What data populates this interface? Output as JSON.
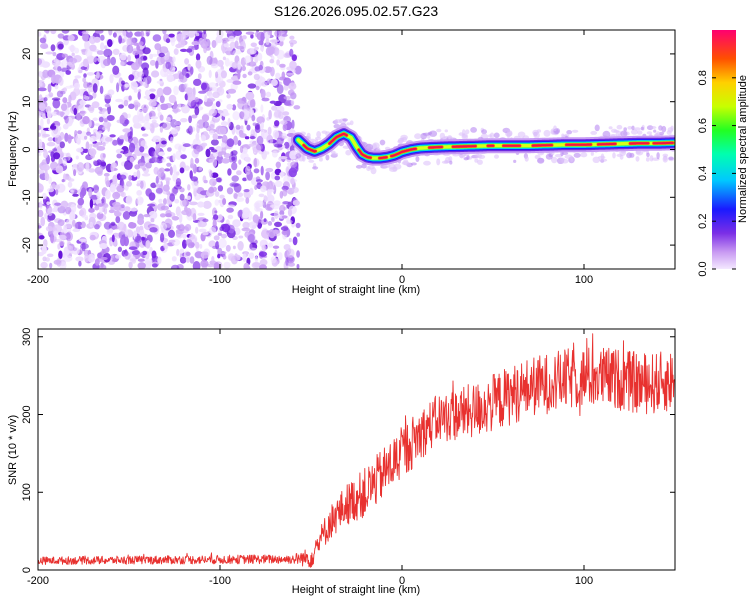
{
  "title": "S126.2026.095.02.57.G23",
  "chart_data": [
    {
      "type": "heatmap",
      "name": "spectrogram",
      "xlabel": "Height of straight line (km)",
      "ylabel": "Frequency (Hz)",
      "xlim": [
        -200,
        150
      ],
      "ylim": [
        -25,
        25
      ],
      "xticks": [
        -200,
        -100,
        0,
        100
      ],
      "xtick_labels": [
        "-200",
        "-100",
        "0",
        "100"
      ],
      "yticks": [
        -20,
        -10,
        0,
        10,
        20
      ],
      "ytick_labels": [
        "-20",
        "-10",
        "0",
        "10",
        "20"
      ],
      "noise_region_x": [
        -200,
        -57
      ],
      "signal_ridge": {
        "x": [
          -57,
          -52,
          -48,
          -44,
          -40,
          -36,
          -32,
          -28,
          -25,
          -22,
          -19,
          -16,
          -12,
          -8,
          -4,
          0,
          5,
          10,
          20,
          30,
          40,
          50,
          60,
          70,
          80,
          90,
          100,
          110,
          120,
          130,
          140,
          150
        ],
        "freq": [
          2.0,
          0.2,
          -0.4,
          0.2,
          1.2,
          2.6,
          3.3,
          2.5,
          0.6,
          -1.0,
          -1.6,
          -1.8,
          -1.8,
          -1.6,
          -1.2,
          -0.5,
          0.0,
          0.3,
          0.5,
          0.6,
          0.7,
          0.8,
          0.8,
          0.8,
          0.9,
          1.0,
          1.0,
          1.1,
          1.2,
          1.3,
          1.3,
          1.4
        ]
      },
      "colorbar": {
        "label": "Normalized spectral amplitude",
        "range": [
          0,
          1
        ],
        "ticks": [
          0.0,
          0.2,
          0.4,
          0.6,
          0.8
        ],
        "tick_labels": [
          "0.0",
          "0.2",
          "0.4",
          "0.6",
          "0.8"
        ]
      }
    },
    {
      "type": "line",
      "name": "snr",
      "xlabel": "Height of straight line (km)",
      "ylabel": "SNR (10 * v/v)",
      "xlim": [
        -200,
        150
      ],
      "ylim": [
        0,
        310
      ],
      "xticks": [
        -200,
        -100,
        0,
        100
      ],
      "xtick_labels": [
        "-200",
        "-100",
        "0",
        "100"
      ],
      "yticks": [
        0,
        100,
        200,
        300
      ],
      "ytick_labels": [
        "0",
        "100",
        "200",
        "300"
      ],
      "color": "#e8312f",
      "trend": {
        "x": [
          -200,
          -60,
          -50,
          -40,
          -30,
          -20,
          -10,
          0,
          10,
          20,
          30,
          40,
          50,
          60,
          70,
          80,
          90,
          100,
          110,
          120,
          130,
          140,
          150
        ],
        "y": [
          12,
          14,
          16,
          60,
          85,
          100,
          125,
          150,
          175,
          195,
          200,
          205,
          215,
          225,
          235,
          240,
          245,
          248,
          248,
          245,
          240,
          240,
          245
        ]
      },
      "noise_amplitude": {
        "x": [
          -200,
          -60,
          -40,
          -20,
          0,
          20,
          50,
          100,
          150
        ],
        "amp": [
          5,
          6,
          22,
          32,
          35,
          32,
          38,
          40,
          40
        ]
      }
    }
  ]
}
